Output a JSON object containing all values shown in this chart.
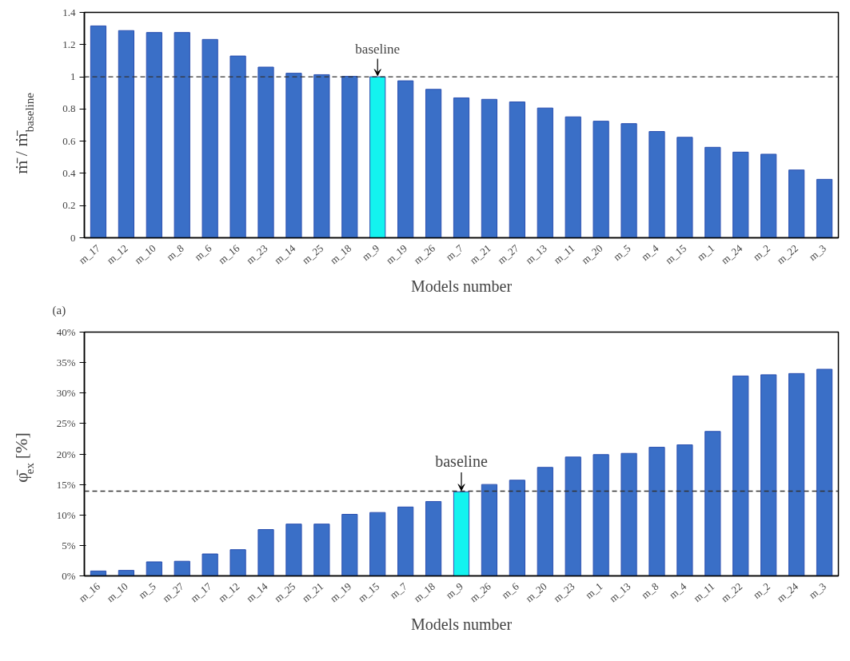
{
  "chart_data": [
    {
      "type": "bar",
      "xlabel": "Models number",
      "ylabel": "ṁ̄ / ṁ̄$_{baseline}$",
      "categories": [
        "m_17",
        "m_12",
        "m_10",
        "m_8",
        "m_6",
        "m_16",
        "m_23",
        "m_14",
        "m_25",
        "m_18",
        "m_9",
        "m_19",
        "m_26",
        "m_7",
        "m_21",
        "m_27",
        "m_13",
        "m_11",
        "m_20",
        "m_5",
        "m_4",
        "m_15",
        "m_1",
        "m_24",
        "m_2",
        "m_22",
        "m_3"
      ],
      "values": [
        1.316,
        1.287,
        1.275,
        1.275,
        1.232,
        1.129,
        1.06,
        1.022,
        1.013,
        1.003,
        1.0,
        0.975,
        0.922,
        0.869,
        0.86,
        0.844,
        0.806,
        0.751,
        0.724,
        0.709,
        0.66,
        0.624,
        0.562,
        0.532,
        0.519,
        0.421,
        0.363
      ],
      "colors": [
        "#3a6fc7",
        "#3a6fc7",
        "#3a6fc7",
        "#3a6fc7",
        "#3a6fc7",
        "#3a6fc7",
        "#3a6fc7",
        "#3a6fc7",
        "#3a6fc7",
        "#3a6fc7",
        "#13f3ef",
        "#3a6fc7",
        "#3a6fc7",
        "#3a6fc7",
        "#3a6fc7",
        "#3a6fc7",
        "#3a6fc7",
        "#3a6fc7",
        "#3a6fc7",
        "#3a6fc7",
        "#3a6fc7",
        "#3a6fc7",
        "#3a6fc7",
        "#3a6fc7",
        "#3a6fc7",
        "#3a6fc7",
        "#3a6fc7"
      ],
      "ylim": [
        0,
        1.4
      ],
      "yticks": [
        0,
        0.2,
        0.4,
        0.6,
        0.8,
        1,
        1.2,
        1.4
      ],
      "grid": false,
      "ref_lines": [
        {
          "axis": "y",
          "value": 1,
          "line_style": "dashed",
          "color": "#333333"
        }
      ],
      "annotations": [
        {
          "text": "baseline",
          "x": "m_9",
          "y": 1.0
        },
        "(a)"
      ]
    },
    {
      "type": "bar",
      "xlabel": "Models number",
      "ylabel": "φ̄$_{ex}$ [%]",
      "categories": [
        "m_16",
        "m_10",
        "m_5",
        "m_27",
        "m_17",
        "m_12",
        "m_14",
        "m_25",
        "m_21",
        "m_19",
        "m_15",
        "m_7",
        "m_18",
        "m_9",
        "m_26",
        "m_6",
        "m_20",
        "m_23",
        "m_1",
        "m_13",
        "m_8",
        "m_4",
        "m_11",
        "m_22",
        "m_2",
        "m_24",
        "m_3"
      ],
      "values": [
        0.8,
        0.9,
        2.3,
        2.4,
        3.6,
        4.3,
        7.6,
        8.5,
        8.5,
        10.1,
        10.4,
        11.3,
        12.2,
        13.8,
        15.0,
        15.7,
        17.8,
        19.5,
        19.9,
        20.1,
        21.1,
        21.5,
        23.7,
        32.8,
        33.0,
        33.2,
        33.9
      ],
      "colors": [
        "#3a6fc7",
        "#3a6fc7",
        "#3a6fc7",
        "#3a6fc7",
        "#3a6fc7",
        "#3a6fc7",
        "#3a6fc7",
        "#3a6fc7",
        "#3a6fc7",
        "#3a6fc7",
        "#3a6fc7",
        "#3a6fc7",
        "#3a6fc7",
        "#13f3ef",
        "#3a6fc7",
        "#3a6fc7",
        "#3a6fc7",
        "#3a6fc7",
        "#3a6fc7",
        "#3a6fc7",
        "#3a6fc7",
        "#3a6fc7",
        "#3a6fc7",
        "#3a6fc7",
        "#3a6fc7",
        "#3a6fc7",
        "#3a6fc7"
      ],
      "ylim": [
        0,
        40
      ],
      "yticks": [
        {
          "value": 0,
          "label": "0%"
        },
        {
          "value": 5,
          "label": "5%"
        },
        {
          "value": 10,
          "label": "10%"
        },
        {
          "value": 15,
          "label": "15%"
        },
        {
          "value": 20,
          "label": "20%"
        },
        {
          "value": 25,
          "label": "25%"
        },
        {
          "value": 30,
          "label": "30%"
        },
        {
          "value": 35,
          "label": "35%"
        },
        {
          "value": 40,
          "label": "40%"
        }
      ],
      "grid": false,
      "ref_lines": [
        {
          "axis": "y",
          "value": 13.9,
          "line_style": "dashed",
          "color": "#333333"
        }
      ],
      "annotations": [
        {
          "text": "baseline",
          "x": "m_9",
          "y": 13.8
        }
      ]
    }
  ]
}
